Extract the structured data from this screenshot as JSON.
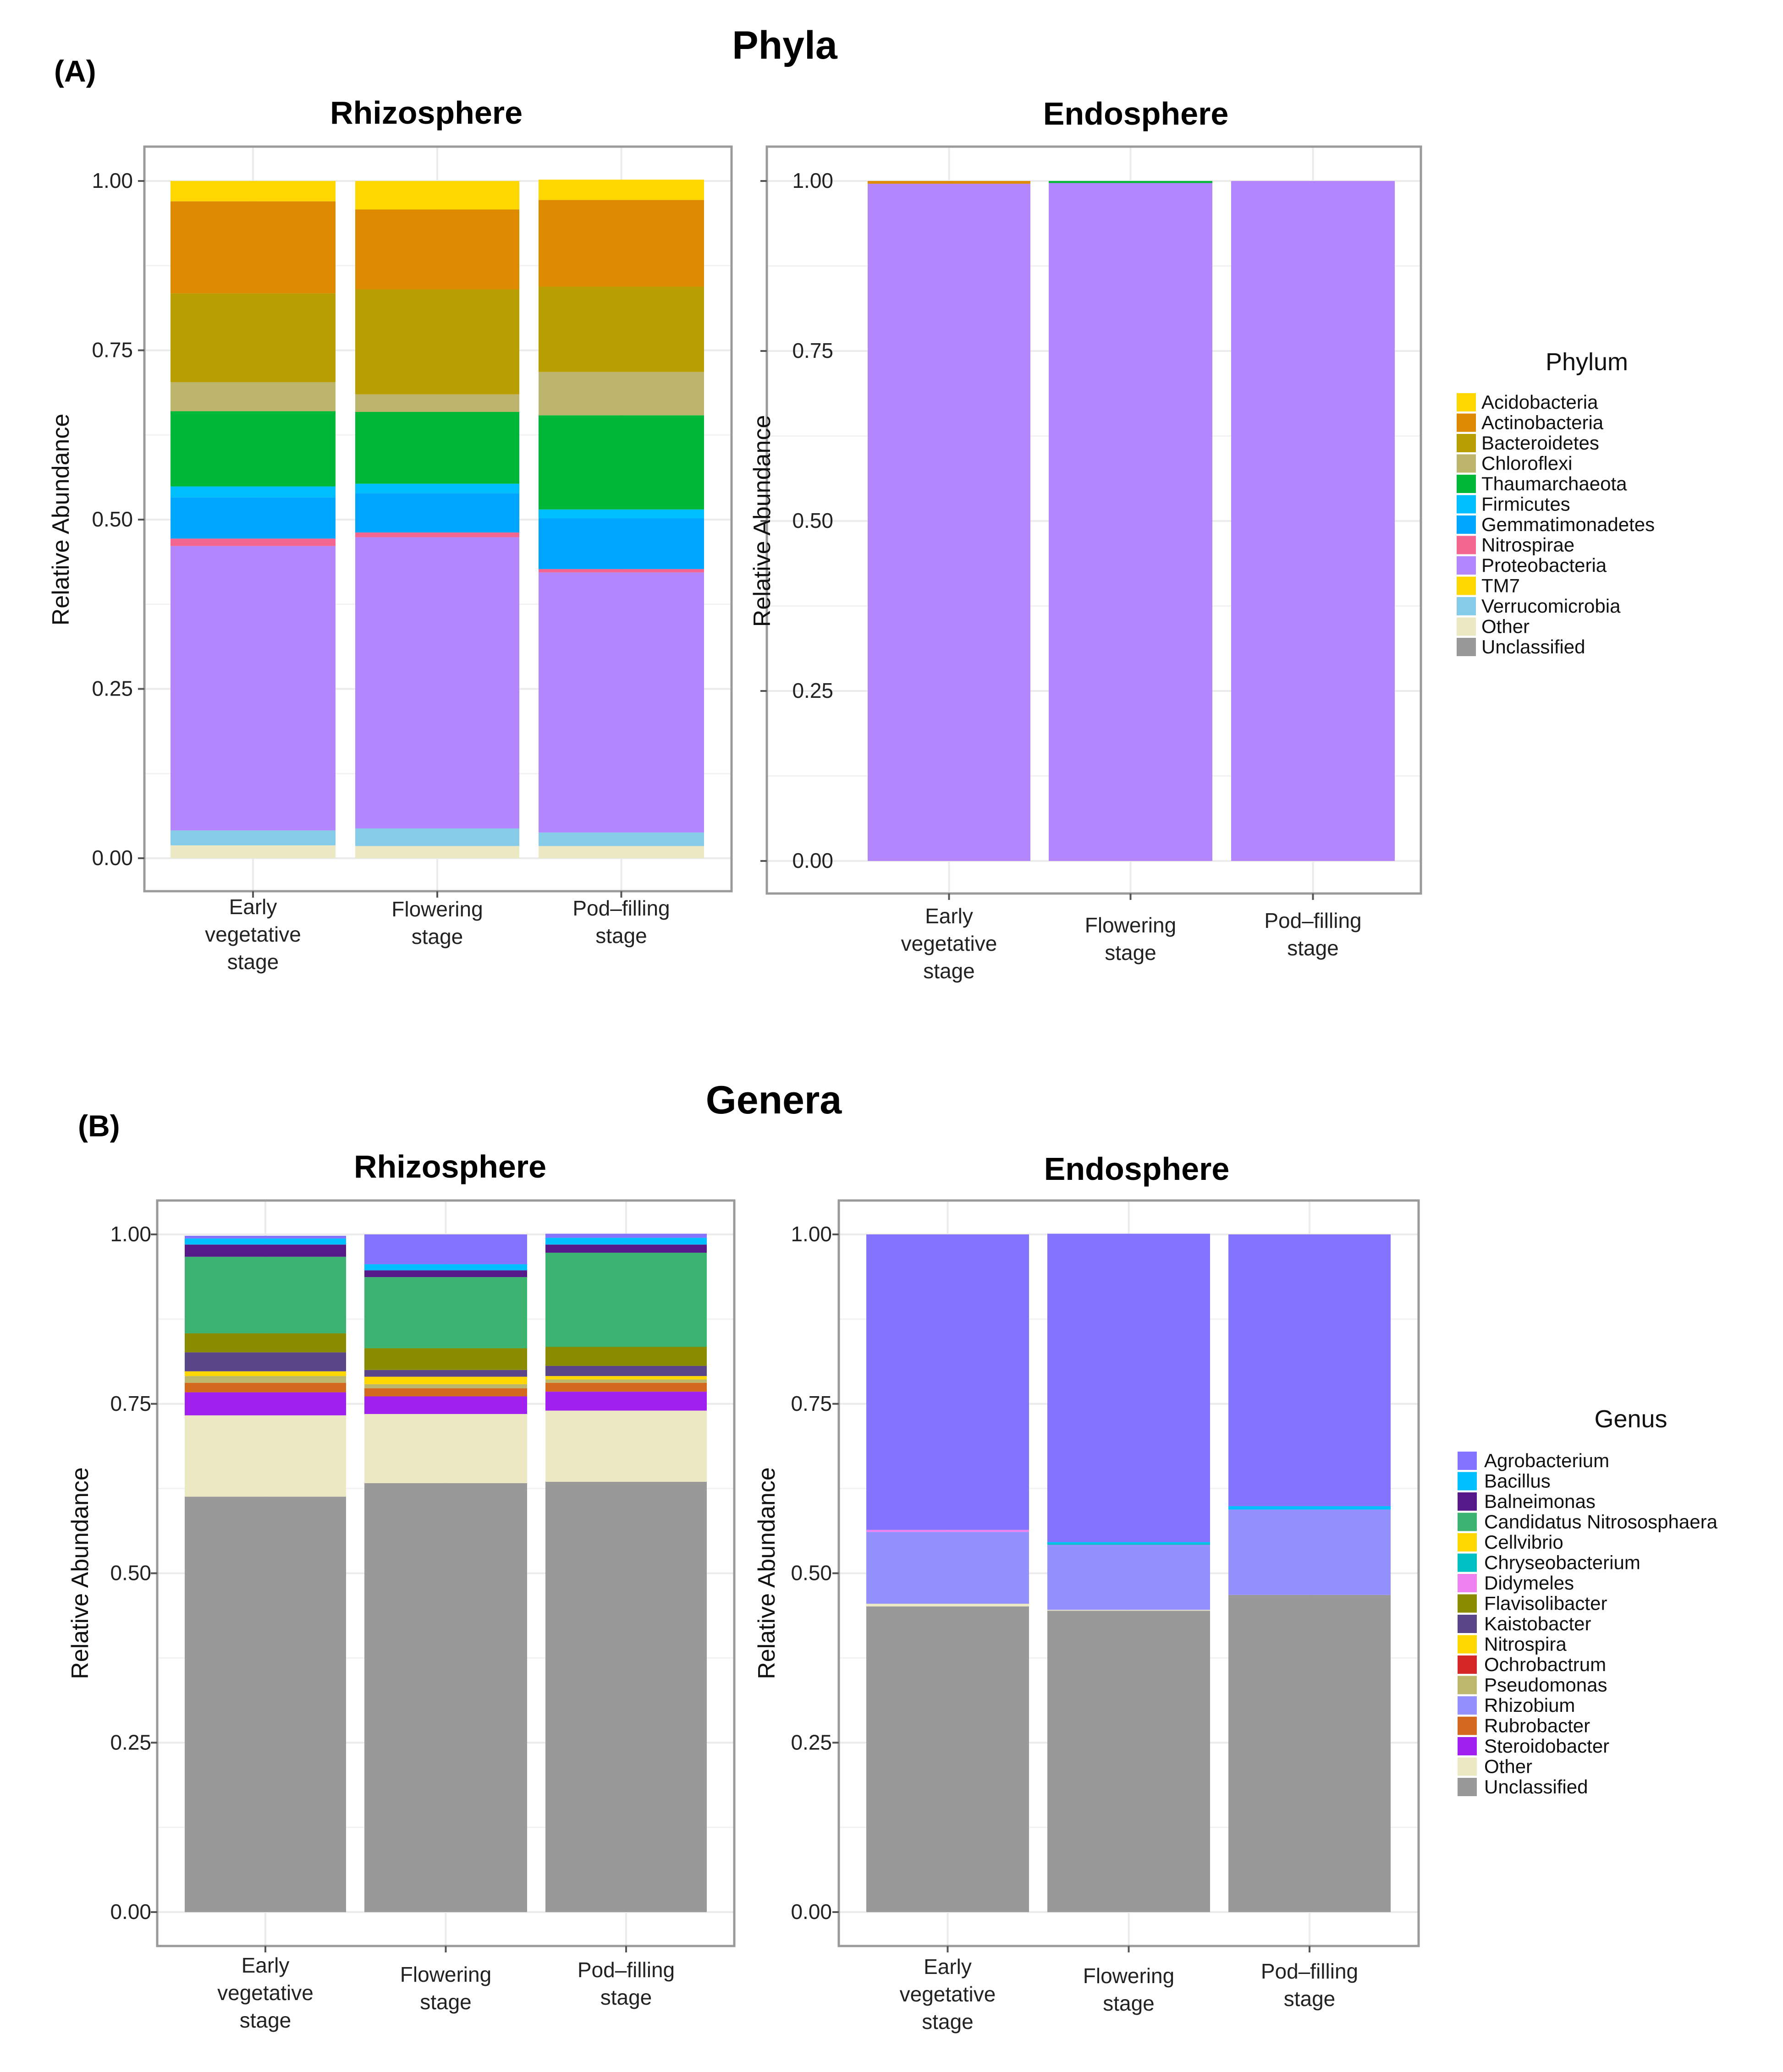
{
  "figure": {
    "panel_a": {
      "label": "(A)",
      "title": "Phyla"
    },
    "panel_b": {
      "label": "(B)",
      "title": "Genera"
    }
  },
  "legends": {
    "phylum": {
      "title": "Phylum",
      "items": [
        {
          "name": "Acidobacteria",
          "color": "#FFD700"
        },
        {
          "name": "Actinobacteria",
          "color": "#DD8A00"
        },
        {
          "name": "Bacteroidetes",
          "color": "#B89E00"
        },
        {
          "name": "Chloroflexi",
          "color": "#BDB46E"
        },
        {
          "name": "Thaumarchaeota",
          "color": "#00B837"
        },
        {
          "name": "Firmicutes",
          "color": "#00BFFF"
        },
        {
          "name": "Gemmatimonadetes",
          "color": "#00A6FF"
        },
        {
          "name": "Nitrospirae",
          "color": "#F2668F"
        },
        {
          "name": "Proteobacteria",
          "color": "#B386FD"
        },
        {
          "name": "TM7",
          "color": "#FFD700"
        },
        {
          "name": "Verrucomicrobia",
          "color": "#86CBE8"
        },
        {
          "name": "Other",
          "color": "#EDE8C4"
        },
        {
          "name": "Unclassified",
          "color": "#999999"
        }
      ]
    },
    "genus": {
      "title": "Genus",
      "items": [
        {
          "name": "Agrobacterium",
          "color": "#8473FD"
        },
        {
          "name": "Bacillus",
          "color": "#00BFFF"
        },
        {
          "name": "Balneimonas",
          "color": "#55198A"
        },
        {
          "name": "Candidatus Nitrososphaera",
          "color": "#3CB371"
        },
        {
          "name": "Cellvibrio",
          "color": "#FFD700"
        },
        {
          "name": "Chryseobacterium",
          "color": "#00BFC4"
        },
        {
          "name": "Didymeles",
          "color": "#EE82EE"
        },
        {
          "name": "Flavisolibacter",
          "color": "#8B8B00"
        },
        {
          "name": "Kaistobacter",
          "color": "#5B4589"
        },
        {
          "name": "Nitrospira",
          "color": "#FFD700"
        },
        {
          "name": "Ochrobactrum",
          "color": "#D62728"
        },
        {
          "name": "Pseudomonas",
          "color": "#BDB76B"
        },
        {
          "name": "Rhizobium",
          "color": "#9490FD"
        },
        {
          "name": "Rubrobacter",
          "color": "#D2691E"
        },
        {
          "name": "Steroidobacter",
          "color": "#A020F0"
        },
        {
          "name": "Other",
          "color": "#EDE8C4"
        },
        {
          "name": "Unclassified",
          "color": "#999999"
        }
      ]
    }
  },
  "chart_data": [
    {
      "type": "bar",
      "stacked": true,
      "title": "Rhizosphere",
      "panel": "A",
      "legend": "phylum",
      "ylabel": "Relative Abundance",
      "xlabel": "",
      "ylim": [
        0,
        1
      ],
      "yticks": [
        0,
        0.25,
        0.5,
        0.75,
        1
      ],
      "ytick_labels": [
        "0.00",
        "0.25",
        "0.50",
        "0.75",
        "1.00"
      ],
      "categories": [
        [
          "Early",
          "vegetative",
          "stage"
        ],
        [
          "Flowering",
          "stage"
        ],
        [
          "Pod–filling",
          "stage"
        ]
      ],
      "series": [
        {
          "name": "Acidobacteria",
          "values": [
            0.03,
            0.042,
            0.03
          ]
        },
        {
          "name": "Actinobacteria",
          "values": [
            0.136,
            0.118,
            0.128
          ]
        },
        {
          "name": "Bacteroidetes",
          "values": [
            0.131,
            0.155,
            0.126
          ]
        },
        {
          "name": "Chloroflexi",
          "values": [
            0.043,
            0.026,
            0.064
          ]
        },
        {
          "name": "Thaumarchaeota",
          "values": [
            0.111,
            0.106,
            0.139
          ]
        },
        {
          "name": "Firmicutes",
          "values": [
            0.016,
            0.014,
            0.013
          ]
        },
        {
          "name": "Gemmatimonadetes",
          "values": [
            0.061,
            0.058,
            0.075
          ]
        },
        {
          "name": "Nitrospirae",
          "values": [
            0.011,
            0.007,
            0.005
          ]
        },
        {
          "name": "Proteobacteria",
          "values": [
            0.42,
            0.43,
            0.384
          ]
        },
        {
          "name": "TM7",
          "values": [
            0,
            0,
            0
          ]
        },
        {
          "name": "Verrucomicrobia",
          "values": [
            0.022,
            0.026,
            0.02
          ]
        },
        {
          "name": "Other",
          "values": [
            0.019,
            0.018,
            0.018
          ]
        },
        {
          "name": "Unclassified",
          "values": [
            0,
            0,
            0
          ]
        }
      ]
    },
    {
      "type": "bar",
      "stacked": true,
      "title": "Endosphere",
      "panel": "A",
      "legend": "phylum",
      "ylabel": "Relative Abundance",
      "xlabel": "",
      "ylim": [
        0,
        1
      ],
      "yticks": [
        0,
        0.25,
        0.5,
        0.75,
        1
      ],
      "ytick_labels": [
        "0.00",
        "0.25",
        "0.50",
        "0.75",
        "1.00"
      ],
      "categories": [
        [
          "Early",
          "vegetative",
          "stage"
        ],
        [
          "Flowering",
          "stage"
        ],
        [
          "Pod–filling",
          "stage"
        ]
      ],
      "series": [
        {
          "name": "Acidobacteria",
          "values": [
            0,
            0,
            0
          ]
        },
        {
          "name": "Actinobacteria",
          "values": [
            0.004,
            0,
            0
          ]
        },
        {
          "name": "Bacteroidetes",
          "values": [
            0,
            0,
            0
          ]
        },
        {
          "name": "Chloroflexi",
          "values": [
            0,
            0,
            0
          ]
        },
        {
          "name": "Thaumarchaeota",
          "values": [
            0,
            0.003,
            0
          ]
        },
        {
          "name": "Firmicutes",
          "values": [
            0,
            0,
            0
          ]
        },
        {
          "name": "Gemmatimonadetes",
          "values": [
            0,
            0,
            0
          ]
        },
        {
          "name": "Nitrospirae",
          "values": [
            0,
            0,
            0
          ]
        },
        {
          "name": "Proteobacteria",
          "values": [
            0.996,
            0.997,
            1.0
          ]
        },
        {
          "name": "TM7",
          "values": [
            0,
            0,
            0
          ]
        },
        {
          "name": "Verrucomicrobia",
          "values": [
            0,
            0,
            0
          ]
        },
        {
          "name": "Other",
          "values": [
            0,
            0,
            0
          ]
        },
        {
          "name": "Unclassified",
          "values": [
            0,
            0,
            0
          ]
        }
      ]
    },
    {
      "type": "bar",
      "stacked": true,
      "title": "Rhizosphere",
      "panel": "B",
      "legend": "genus",
      "ylabel": "Relative Abundance",
      "xlabel": "",
      "ylim": [
        0,
        1
      ],
      "yticks": [
        0,
        0.25,
        0.5,
        0.75,
        1
      ],
      "ytick_labels": [
        "0.00",
        "0.25",
        "0.50",
        "0.75",
        "1.00"
      ],
      "categories": [
        [
          "Early",
          "vegetative",
          "stage"
        ],
        [
          "Flowering",
          "stage"
        ],
        [
          "Pod–filling",
          "stage"
        ]
      ],
      "series": [
        {
          "name": "Agrobacterium",
          "values": [
            0.004,
            0.044,
            0.006
          ]
        },
        {
          "name": "Bacillus",
          "values": [
            0.009,
            0.009,
            0.01
          ]
        },
        {
          "name": "Balneimonas",
          "values": [
            0.018,
            0.01,
            0.012
          ]
        },
        {
          "name": "Candidatus Nitrososphaera",
          "values": [
            0.113,
            0.105,
            0.139
          ]
        },
        {
          "name": "Cellvibrio",
          "values": [
            0,
            0,
            0
          ]
        },
        {
          "name": "Chryseobacterium",
          "values": [
            0,
            0,
            0
          ]
        },
        {
          "name": "Didymeles",
          "values": [
            0,
            0,
            0
          ]
        },
        {
          "name": "Flavisolibacter",
          "values": [
            0.028,
            0.032,
            0.028
          ]
        },
        {
          "name": "Kaistobacter",
          "values": [
            0.028,
            0.01,
            0.015
          ]
        },
        {
          "name": "Nitrospira",
          "values": [
            0.007,
            0.011,
            0.005
          ]
        },
        {
          "name": "Ochrobactrum",
          "values": [
            0,
            0,
            0
          ]
        },
        {
          "name": "Pseudomonas",
          "values": [
            0.01,
            0.006,
            0.005
          ]
        },
        {
          "name": "Rhizobium",
          "values": [
            0,
            0,
            0
          ]
        },
        {
          "name": "Rubrobacter",
          "values": [
            0.014,
            0.012,
            0.013
          ]
        },
        {
          "name": "Steroidobacter",
          "values": [
            0.034,
            0.026,
            0.028
          ]
        },
        {
          "name": "Other",
          "values": [
            0.12,
            0.102,
            0.105
          ]
        },
        {
          "name": "Unclassified",
          "values": [
            0.613,
            0.633,
            0.635
          ]
        }
      ]
    },
    {
      "type": "bar",
      "stacked": true,
      "title": "Endosphere",
      "panel": "B",
      "legend": "genus",
      "ylabel": "Relative Abundance",
      "xlabel": "",
      "ylim": [
        0,
        1
      ],
      "yticks": [
        0,
        0.25,
        0.5,
        0.75,
        1
      ],
      "ytick_labels": [
        "0.00",
        "0.25",
        "0.50",
        "0.75",
        "1.00"
      ],
      "categories": [
        [
          "Early",
          "vegetative",
          "stage"
        ],
        [
          "Flowering",
          "stage"
        ],
        [
          "Pod–filling",
          "stage"
        ]
      ],
      "series": [
        {
          "name": "Agrobacterium",
          "values": [
            0.436,
            0.455,
            0.401
          ]
        },
        {
          "name": "Bacillus",
          "values": [
            0,
            0.002,
            0.005
          ]
        },
        {
          "name": "Balneimonas",
          "values": [
            0,
            0,
            0
          ]
        },
        {
          "name": "Candidatus Nitrososphaera",
          "values": [
            0,
            0,
            0
          ]
        },
        {
          "name": "Cellvibrio",
          "values": [
            0,
            0,
            0
          ]
        },
        {
          "name": "Chryseobacterium",
          "values": [
            0,
            0.002,
            0
          ]
        },
        {
          "name": "Didymeles",
          "values": [
            0.003,
            0,
            0
          ]
        },
        {
          "name": "Flavisolibacter",
          "values": [
            0,
            0,
            0
          ]
        },
        {
          "name": "Kaistobacter",
          "values": [
            0,
            0,
            0
          ]
        },
        {
          "name": "Nitrospira",
          "values": [
            0,
            0,
            0
          ]
        },
        {
          "name": "Ochrobactrum",
          "values": [
            0,
            0,
            0
          ]
        },
        {
          "name": "Pseudomonas",
          "values": [
            0,
            0,
            0
          ]
        },
        {
          "name": "Rhizobium",
          "values": [
            0.106,
            0.096,
            0.126
          ]
        },
        {
          "name": "Rubrobacter",
          "values": [
            0,
            0,
            0
          ]
        },
        {
          "name": "Steroidobacter",
          "values": [
            0,
            0,
            0
          ]
        },
        {
          "name": "Other",
          "values": [
            0.004,
            0.001,
            0
          ]
        },
        {
          "name": "Unclassified",
          "values": [
            0.451,
            0.445,
            0.468
          ]
        }
      ]
    }
  ]
}
